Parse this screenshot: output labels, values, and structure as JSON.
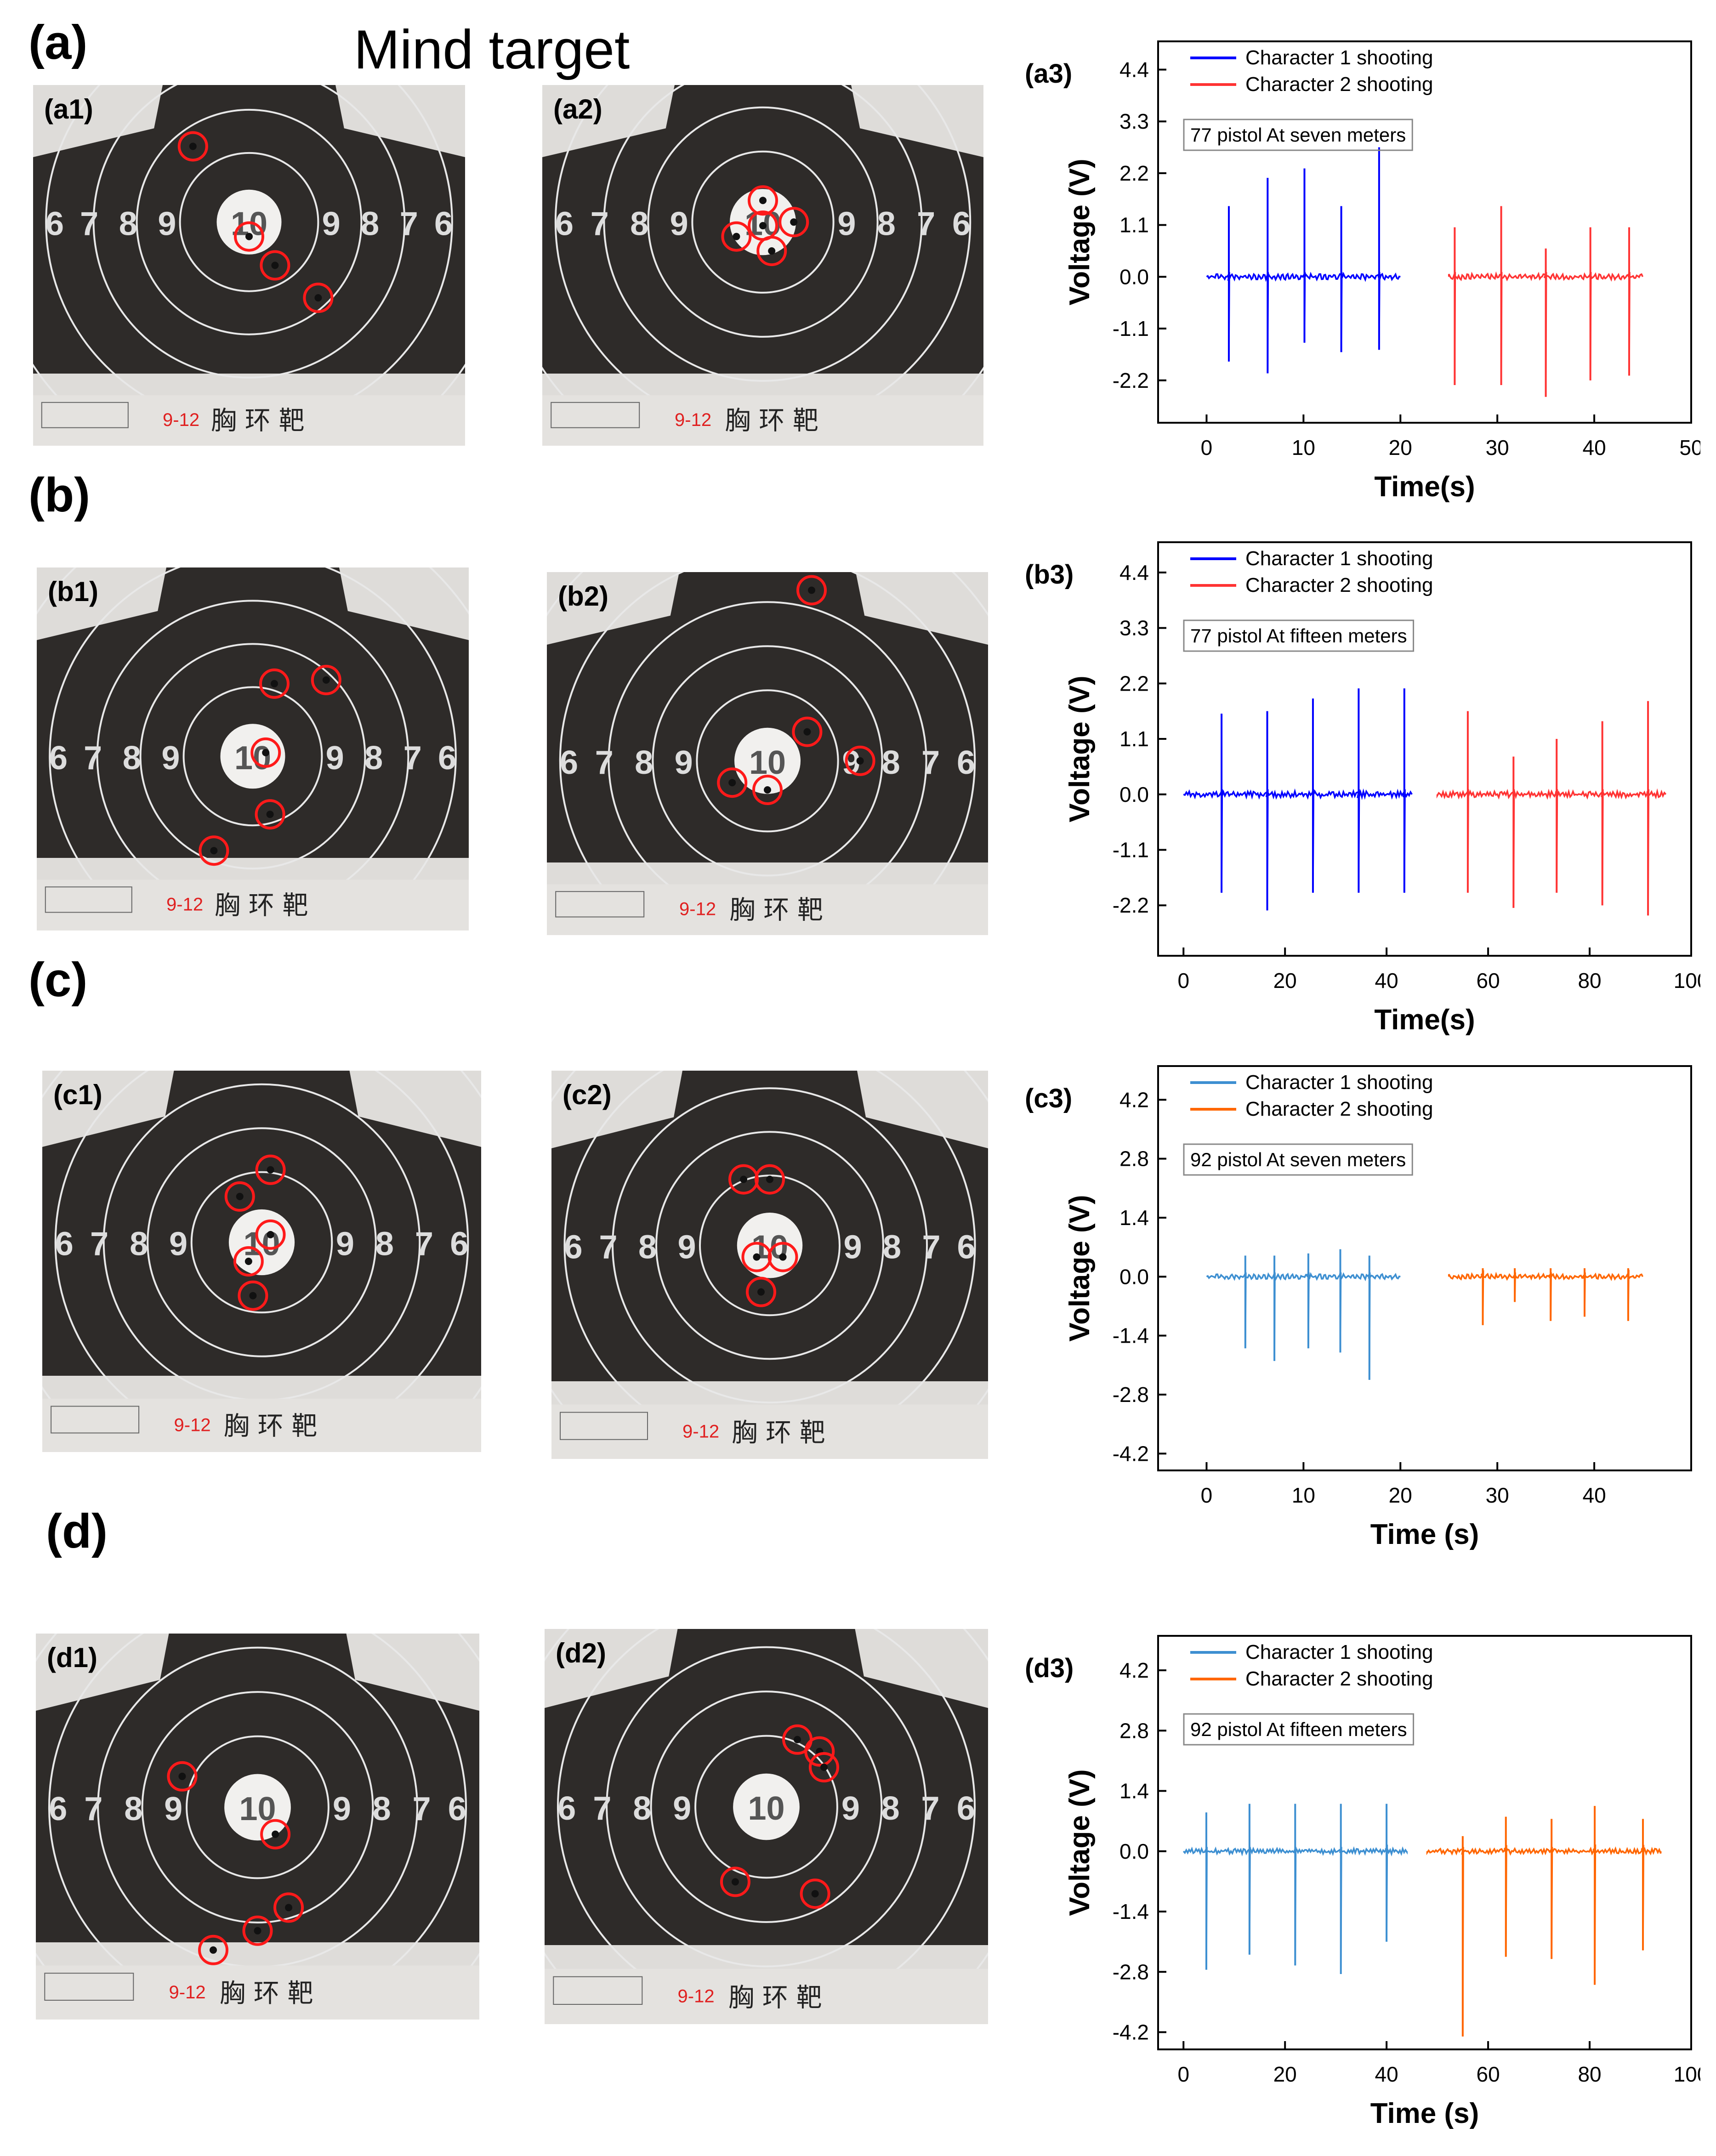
{
  "figure": {
    "title": "Mind target",
    "sections": [
      "(a)",
      "(b)",
      "(c)",
      "(d)"
    ]
  },
  "targets": {
    "ring_numbers": [
      "6",
      "7",
      "8",
      "9",
      "10",
      "9",
      "8",
      "7",
      "6"
    ],
    "caption": "胸 环 靶",
    "panels": [
      {
        "label": "(a1)",
        "note": "9-12",
        "hits": 4,
        "variant": "a"
      },
      {
        "label": "(a2)",
        "note": "9-12",
        "hits": 5,
        "variant": "a"
      },
      {
        "label": "(b1)",
        "note": "9-12",
        "hits": 5,
        "variant": "b"
      },
      {
        "label": "(b2)",
        "note": "9-12",
        "hits": 4,
        "variant": "b"
      },
      {
        "label": "(c1)",
        "note": "9-12",
        "hits": 5,
        "variant": "c"
      },
      {
        "label": "(c2)",
        "note": "9-12",
        "hits": 5,
        "variant": "c"
      },
      {
        "label": "(d1)",
        "note": "9-12",
        "hits": 5,
        "variant": "d"
      },
      {
        "label": "(d2)",
        "note": "9-12",
        "hits": 5,
        "variant": "d"
      }
    ]
  },
  "chart_data": [
    {
      "label": "(a3)",
      "type": "line",
      "annotation": "77 pistol At seven meters",
      "xlabel": "Time(s)",
      "ylabel": "Voltage (V)",
      "xlim": [
        -5,
        50
      ],
      "ylim": [
        -3.1,
        5.0
      ],
      "xticks": [
        0,
        10,
        20,
        30,
        40,
        50
      ],
      "yticks": [
        -2.2,
        -1.1,
        0.0,
        1.1,
        2.2,
        3.3,
        4.4
      ],
      "ytick_labels": [
        "-2.2",
        "-1.1",
        "0.0",
        "1.1",
        "2.2",
        "3.3",
        "4.4"
      ],
      "series": [
        {
          "name": "Character 1 shooting",
          "color": "#0000ff",
          "x_range": [
            0,
            20
          ],
          "spikes": [
            {
              "t": 2.3,
              "up": 1.5,
              "down": -1.8
            },
            {
              "t": 6.3,
              "up": 2.1,
              "down": -2.05
            },
            {
              "t": 10.1,
              "up": 2.3,
              "down": -1.4
            },
            {
              "t": 13.9,
              "up": 1.5,
              "down": -1.6
            },
            {
              "t": 17.8,
              "up": 2.75,
              "down": -1.55
            }
          ]
        },
        {
          "name": "Character 2 shooting",
          "color": "#ff3333",
          "x_range": [
            25,
            45
          ],
          "spikes": [
            {
              "t": 25.6,
              "up": 1.05,
              "down": -2.3
            },
            {
              "t": 30.4,
              "up": 1.5,
              "down": -2.3
            },
            {
              "t": 35.0,
              "up": 0.6,
              "down": -2.55
            },
            {
              "t": 39.6,
              "up": 1.05,
              "down": -2.2
            },
            {
              "t": 43.6,
              "up": 1.05,
              "down": -2.1
            }
          ]
        }
      ]
    },
    {
      "label": "(b3)",
      "type": "line",
      "annotation": "77 pistol At fifteen meters",
      "xlabel": "Time(s)",
      "ylabel": "Voltage (V)",
      "xlim": [
        -5,
        100
      ],
      "ylim": [
        -3.2,
        5.0
      ],
      "xticks": [
        0,
        20,
        40,
        60,
        80,
        100
      ],
      "yticks": [
        -2.2,
        -1.1,
        0.0,
        1.1,
        2.2,
        3.3,
        4.4
      ],
      "ytick_labels": [
        "-2.2",
        "-1.1",
        "0.0",
        "1.1",
        "2.2",
        "3.3",
        "4.4"
      ],
      "series": [
        {
          "name": "Character 1 shooting",
          "color": "#0000ff",
          "x_range": [
            0,
            45
          ],
          "spikes": [
            {
              "t": 7.5,
              "up": 1.6,
              "down": -1.95
            },
            {
              "t": 16.5,
              "up": 1.65,
              "down": -2.3
            },
            {
              "t": 25.5,
              "up": 1.9,
              "down": -1.95
            },
            {
              "t": 34.5,
              "up": 2.1,
              "down": -1.95
            },
            {
              "t": 43.5,
              "up": 2.1,
              "down": -1.95
            }
          ]
        },
        {
          "name": "Character 2 shooting",
          "color": "#ff3333",
          "x_range": [
            50,
            95
          ],
          "spikes": [
            {
              "t": 56.0,
              "up": 1.65,
              "down": -1.95
            },
            {
              "t": 65.0,
              "up": 0.75,
              "down": -2.25
            },
            {
              "t": 73.5,
              "up": 1.1,
              "down": -1.95
            },
            {
              "t": 82.5,
              "up": 1.45,
              "down": -2.2
            },
            {
              "t": 91.5,
              "up": 1.85,
              "down": -2.4
            }
          ]
        }
      ]
    },
    {
      "label": "(c3)",
      "type": "line",
      "annotation": "92 pistol At seven meters",
      "xlabel": "Time (s)",
      "ylabel": "Voltage (V)",
      "xlim": [
        -5,
        50
      ],
      "ylim": [
        -4.6,
        5.0
      ],
      "xticks": [
        0,
        10,
        20,
        30,
        40
      ],
      "yticks": [
        -4.2,
        -2.8,
        -1.4,
        0.0,
        1.4,
        2.8,
        4.2
      ],
      "ytick_labels": [
        "-4.2",
        "-2.8",
        "-1.4",
        "0.0",
        "1.4",
        "2.8",
        "4.2"
      ],
      "series": [
        {
          "name": "Character 1 shooting",
          "color": "#3d8fd1",
          "x_range": [
            0,
            20
          ],
          "spikes": [
            {
              "t": 4.0,
              "up": 0.5,
              "down": -1.7
            },
            {
              "t": 7.0,
              "up": 0.5,
              "down": -2.0
            },
            {
              "t": 10.5,
              "up": 0.55,
              "down": -1.7
            },
            {
              "t": 13.8,
              "up": 0.65,
              "down": -1.8
            },
            {
              "t": 16.8,
              "up": 0.5,
              "down": -2.45
            }
          ]
        },
        {
          "name": "Character 2 shooting",
          "color": "#ff6600",
          "x_range": [
            25,
            45
          ],
          "spikes": [
            {
              "t": 28.5,
              "up": 0.2,
              "down": -1.15
            },
            {
              "t": 31.8,
              "up": 0.2,
              "down": -0.6
            },
            {
              "t": 35.5,
              "up": 0.2,
              "down": -1.05
            },
            {
              "t": 39.0,
              "up": 0.2,
              "down": -0.95
            },
            {
              "t": 43.5,
              "up": 0.2,
              "down": -1.05
            }
          ]
        }
      ]
    },
    {
      "label": "(d3)",
      "type": "line",
      "annotation": "92 pistol At fifteen meters",
      "xlabel": "Time (s)",
      "ylabel": "Voltage (V)",
      "xlim": [
        -5,
        100
      ],
      "ylim": [
        -4.6,
        5.0
      ],
      "xticks": [
        0,
        20,
        40,
        60,
        80,
        100
      ],
      "yticks": [
        -4.2,
        -2.8,
        -1.4,
        0.0,
        1.4,
        2.8,
        4.2
      ],
      "ytick_labels": [
        "-4.2",
        "-2.8",
        "-1.4",
        "0.0",
        "1.4",
        "2.8",
        "4.2"
      ],
      "series": [
        {
          "name": "Character 1 shooting",
          "color": "#3d8fd1",
          "x_range": [
            0,
            44
          ],
          "spikes": [
            {
              "t": 4.5,
              "up": 0.9,
              "down": -2.75
            },
            {
              "t": 13.0,
              "up": 1.1,
              "down": -2.4
            },
            {
              "t": 22.0,
              "up": 1.1,
              "down": -2.65
            },
            {
              "t": 31.0,
              "up": 1.1,
              "down": -2.85
            },
            {
              "t": 40.0,
              "up": 1.1,
              "down": -2.1
            }
          ]
        },
        {
          "name": "Character 2 shooting",
          "color": "#ff6600",
          "x_range": [
            48,
            94
          ],
          "spikes": [
            {
              "t": 55.0,
              "up": 0.35,
              "down": -4.3
            },
            {
              "t": 63.5,
              "up": 0.8,
              "down": -2.45
            },
            {
              "t": 72.5,
              "up": 0.75,
              "down": -2.5
            },
            {
              "t": 81.0,
              "up": 1.05,
              "down": -3.1
            },
            {
              "t": 90.5,
              "up": 0.75,
              "down": -2.3
            }
          ]
        }
      ]
    }
  ]
}
